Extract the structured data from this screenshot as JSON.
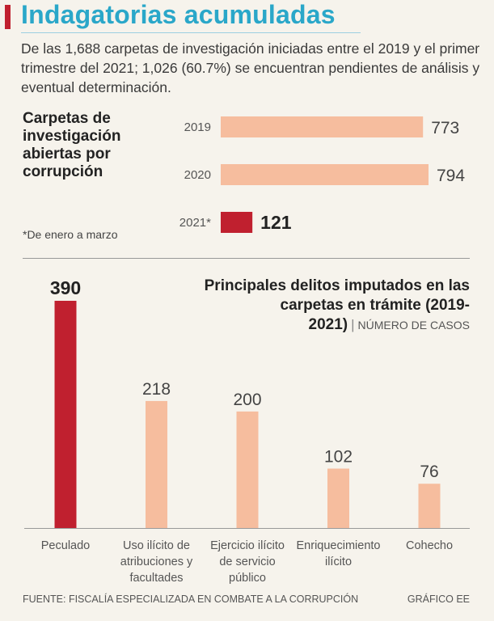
{
  "title": "Indagatorias acumuladas",
  "subtitle": "De las 1,688 carpetas de investigación iniciadas entre el 2019 y el primer trimestre del 2021; 1,026 (60.7%) se encuentran pendientes de análisis y eventual determinación.",
  "footnote": "*De enero a marzo",
  "footer": {
    "source": "FUENTE: FISCALÍA ESPECIALIZADA EN COMBATE A LA CORRUPCIÓN",
    "credit": "GRÁFICO EE"
  },
  "colors": {
    "title": "#2aa7c9",
    "highlight": "#c0202f",
    "bar": "#f6bd9e"
  },
  "chart_data": [
    {
      "type": "bar",
      "orientation": "horizontal",
      "title": "Carpetas de investigación abiertas por corrupción",
      "categories": [
        "2019",
        "2020",
        "2021*"
      ],
      "values": [
        773,
        794,
        121
      ],
      "highlight_index": 2
    },
    {
      "type": "bar",
      "orientation": "vertical",
      "title": "Principales delitos imputados en las carpetas en trámite (2019-2021)",
      "unit": "NÚMERO DE CASOS",
      "categories": [
        "Peculado",
        "Uso ilícito de atribuciones y facultades",
        "Ejercicio ilícito de servicio público",
        "Enriquecimiento ilícito",
        "Cohecho"
      ],
      "category_lines": [
        [
          "Peculado"
        ],
        [
          "Uso ilícito de",
          "atribuciones y",
          "facultades"
        ],
        [
          "Ejercicio ilícito",
          "de servicio",
          "público"
        ],
        [
          "Enriquecimiento",
          "ilícito"
        ],
        [
          "Cohecho"
        ]
      ],
      "values": [
        390,
        218,
        200,
        102,
        76
      ],
      "highlight_index": 0
    }
  ]
}
